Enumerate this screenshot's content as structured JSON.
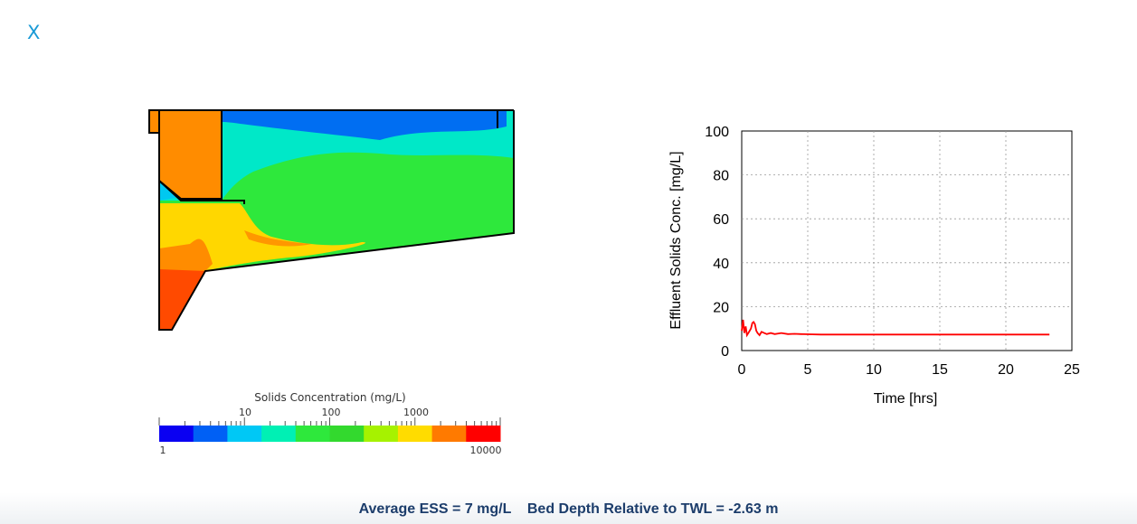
{
  "close_label": "X",
  "simulation": {
    "colorbar": {
      "title": "Solids Concentration (mg/L)",
      "top_ticks": [
        "10",
        "100",
        "1000"
      ],
      "bottom_min": "1",
      "bottom_max": "10000",
      "colors": [
        "#0a00f2",
        "#0060f5",
        "#00c8f5",
        "#00f0b4",
        "#2ee83c",
        "#33d92e",
        "#a6f200",
        "#ffdc00",
        "#ff7a00",
        "#ff0000"
      ]
    }
  },
  "chart_data": {
    "type": "line",
    "xlabel": "Time [hrs]",
    "ylabel": "Effluent Solids Conc. [mg/L]",
    "xlim": [
      0,
      25
    ],
    "ylim": [
      0,
      100
    ],
    "xticks": [
      0,
      5,
      10,
      15,
      20,
      25
    ],
    "yticks": [
      0,
      20,
      40,
      60,
      80,
      100
    ],
    "grid": true,
    "series": [
      {
        "color": "#ff0000",
        "x": [
          0,
          0.1,
          0.2,
          0.3,
          0.4,
          0.5,
          0.6,
          0.7,
          0.8,
          0.9,
          1.0,
          1.1,
          1.2,
          1.35,
          1.5,
          1.7,
          1.9,
          2.2,
          2.5,
          3.0,
          3.5,
          4.0,
          4.5,
          6,
          8,
          10,
          12,
          14,
          16,
          18,
          20,
          22,
          23.3
        ],
        "y": [
          9,
          14,
          8,
          11,
          7,
          8,
          9,
          10,
          12.5,
          13,
          12,
          9,
          8,
          7,
          8.5,
          8,
          7.5,
          8,
          7.5,
          8,
          7.5,
          7.6,
          7.5,
          7.3,
          7.3,
          7.3,
          7.3,
          7.3,
          7.3,
          7.3,
          7.3,
          7.3,
          7.3
        ]
      }
    ]
  },
  "footer": {
    "ess": "Average ESS = 7 mg/L",
    "bed_depth": "Bed Depth Relative to TWL = -2.63 m"
  }
}
